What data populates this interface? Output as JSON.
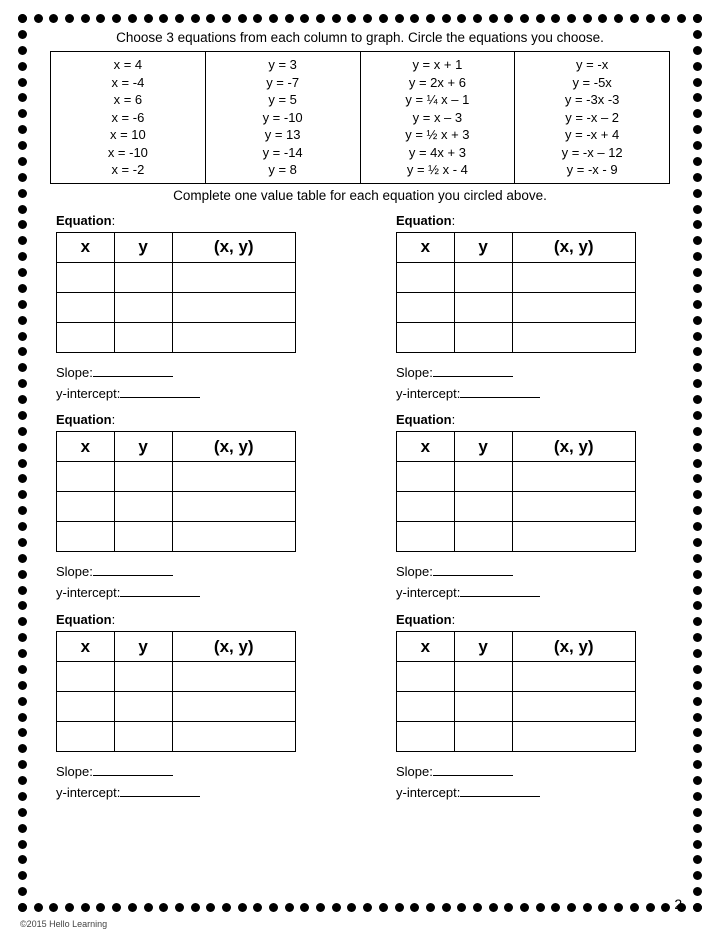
{
  "border": {
    "dots_horizontal": 44,
    "dots_vertical": 57,
    "dot_color": "#000000"
  },
  "instruction_top": "Choose 3 equations from each column to graph.  Circle the equations you choose.",
  "equation_columns": [
    [
      "x = 4",
      "x = -4",
      "x = 6",
      "x = -6",
      "x = 10",
      "x = -10",
      "x = -2"
    ],
    [
      "y = 3",
      "y = -7",
      "y = 5",
      "y = -10",
      "y = 13",
      "y = -14",
      "y = 8"
    ],
    [
      "y = x + 1",
      "y = 2x + 6",
      "y = ¼ x – 1",
      "y = x – 3",
      "y = ½ x + 3",
      "y = 4x + 3",
      "y = ½ x - 4"
    ],
    [
      "y = -x",
      "y = -5x",
      "y = -3x -3",
      "y = -x – 2",
      "y = -x + 4",
      "y = -x – 12",
      "y = -x - 9"
    ]
  ],
  "instruction_mid": "Complete one value table for each equation you circled above.",
  "block_labels": {
    "equation": "Equation",
    "slope": "Slope:",
    "y_intercept": "y-intercept:"
  },
  "value_table_headers": {
    "col1": "x",
    "col2": "y",
    "col3": "(x, y)"
  },
  "value_table_rows": 3,
  "blocks_count": 6,
  "page_number": "2.",
  "copyright": "©2015 Hello Learning"
}
